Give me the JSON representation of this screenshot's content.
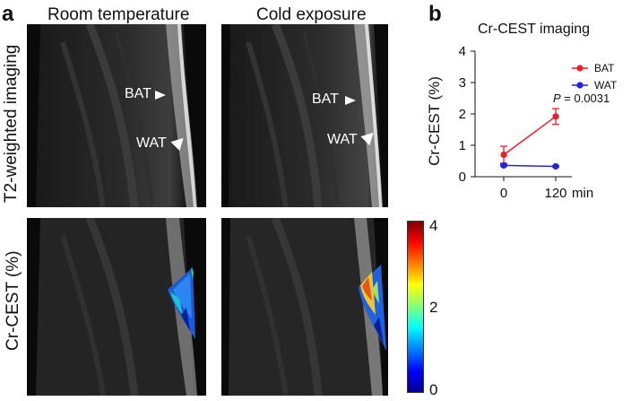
{
  "panel_a": {
    "letter": "a",
    "columns": [
      "Room temperature",
      "Cold exposure"
    ],
    "rows": [
      "T2-weighted imaging",
      "Cr-CEST (%)"
    ],
    "annotations": {
      "bat": "BAT",
      "wat": "WAT"
    },
    "colorbar": {
      "ticks": [
        "4",
        "2",
        "0"
      ],
      "min": 0,
      "max": 4,
      "colormap": "jet"
    }
  },
  "panel_b": {
    "letter": "b",
    "pvalue_label": "P",
    "pvalue_text": " = 0.0031",
    "xunit": "min"
  },
  "chart_data": {
    "type": "line",
    "title": "Cr-CEST imaging",
    "ylabel": "Cr-CEST (%)",
    "xlabel": "",
    "x": [
      "0",
      "120"
    ],
    "ylim": [
      0,
      4
    ],
    "yticks": [
      "0",
      "1",
      "2",
      "3",
      "4"
    ],
    "series": [
      {
        "name": "BAT",
        "values": [
          0.7,
          1.92
        ],
        "errors": [
          0.27,
          0.25
        ],
        "color": "#e8202a"
      },
      {
        "name": "WAT",
        "values": [
          0.36,
          0.33
        ],
        "errors": [
          0.03,
          0.02
        ],
        "color": "#1f24e0"
      }
    ],
    "legend": "top-right",
    "grid": false
  }
}
